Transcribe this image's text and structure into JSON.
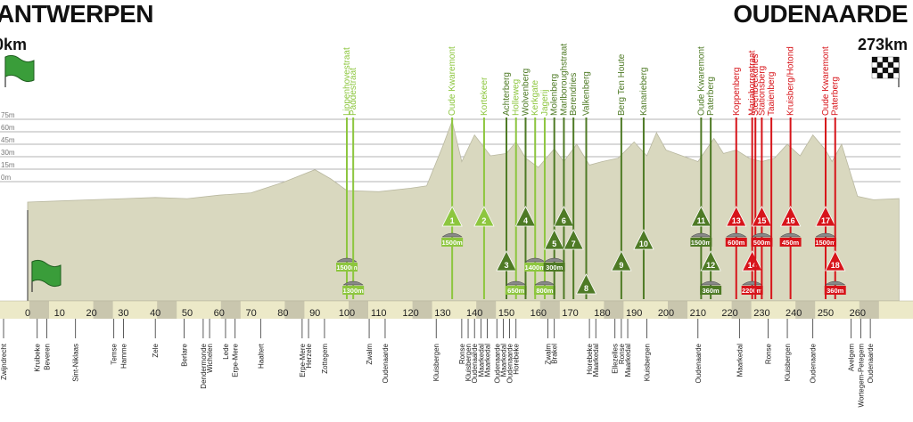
{
  "start": {
    "city": "ANTWERPEN",
    "km": "0km"
  },
  "finish": {
    "city": "OUDENAARDE",
    "km": "273km"
  },
  "colors": {
    "terrain": "#d9d8bf",
    "cobble_climb": "#8dc63f",
    "dark_climb": "#4e7a25",
    "final_climb": "#d7141a",
    "axis_band": "#ece9c8",
    "axis_cell": "#c9c6ae"
  },
  "chart_data": {
    "type": "area",
    "title": "",
    "xlabel": "",
    "ylabel": "",
    "xlim": [
      0,
      273
    ],
    "x_ticks": [
      0,
      10,
      20,
      30,
      40,
      50,
      60,
      70,
      80,
      90,
      100,
      110,
      120,
      130,
      140,
      150,
      160,
      170,
      180,
      190,
      200,
      210,
      220,
      230,
      240,
      250,
      260
    ],
    "y_gridlines": [
      "75m",
      "60m",
      "45m",
      "30m",
      "15m",
      "0m"
    ],
    "profile": {
      "x": [
        0,
        10,
        20,
        30,
        40,
        50,
        60,
        70,
        80,
        90,
        95,
        100,
        110,
        120,
        125,
        130,
        133,
        136,
        140,
        145,
        150,
        153,
        156,
        160,
        165,
        168,
        172,
        176,
        180,
        185,
        190,
        194,
        197,
        200,
        205,
        210,
        215,
        218,
        222,
        226,
        230,
        234,
        238,
        242,
        246,
        250,
        252,
        255,
        260,
        265,
        273
      ],
      "y": [
        10,
        11,
        12,
        13,
        14,
        13,
        16,
        18,
        27,
        38,
        30,
        20,
        19,
        22,
        24,
        58,
        80,
        45,
        68,
        50,
        52,
        62,
        48,
        40,
        56,
        45,
        60,
        42,
        45,
        48,
        62,
        50,
        70,
        55,
        50,
        45,
        65,
        52,
        55,
        48,
        45,
        48,
        60,
        50,
        68,
        55,
        45,
        60,
        15,
        12,
        13
      ]
    },
    "climbs": [
      {
        "name": "Lippenhovestraat",
        "km": 100,
        "kind": "sector",
        "surface": "1500m",
        "number": ""
      },
      {
        "name": "Paddestraat",
        "km": 102,
        "kind": "sector",
        "surface": "1300m",
        "number": ""
      },
      {
        "name": "Oude Kwaremont",
        "km": 133,
        "kind": "climb",
        "surface": "1500m",
        "number": "1"
      },
      {
        "name": "Kortekeer",
        "km": 143,
        "kind": "climb",
        "surface": "",
        "number": "2"
      },
      {
        "name": "Achterberg",
        "km": 150,
        "kind": "climb",
        "surface": "",
        "number": "3"
      },
      {
        "name": "Holleweg",
        "km": 153,
        "kind": "sector",
        "surface": "650m",
        "number": ""
      },
      {
        "name": "Wolvenberg",
        "km": 156,
        "kind": "climb",
        "surface": "",
        "number": "4"
      },
      {
        "name": "Kerkgate",
        "km": 159,
        "kind": "sector",
        "surface": "1400m",
        "number": ""
      },
      {
        "name": "Jagerij",
        "km": 162,
        "kind": "sector",
        "surface": "800m",
        "number": ""
      },
      {
        "name": "Molenberg",
        "km": 165,
        "kind": "climb",
        "surface": "300m",
        "number": "5"
      },
      {
        "name": "Marlboroughstraat",
        "km": 168,
        "kind": "climb",
        "surface": "",
        "number": "6"
      },
      {
        "name": "Berendries",
        "km": 171,
        "kind": "climb",
        "surface": "",
        "number": "7"
      },
      {
        "name": "Valkenberg",
        "km": 175,
        "kind": "climb",
        "surface": "",
        "number": "8"
      },
      {
        "name": "Berg Ten Houte",
        "km": 186,
        "kind": "climb",
        "surface": "",
        "number": "9"
      },
      {
        "name": "Kanarieberg",
        "km": 193,
        "kind": "climb",
        "surface": "",
        "number": "10"
      },
      {
        "name": "Oude Kwaremont",
        "km": 211,
        "kind": "climb",
        "surface": "1500m",
        "number": "11"
      },
      {
        "name": "Paterberg",
        "km": 214,
        "kind": "climb",
        "surface": "360m",
        "number": "12"
      },
      {
        "name": "Koppenberg",
        "km": 222,
        "kind": "climb",
        "surface": "600m",
        "number": "13"
      },
      {
        "name": "Mariaborrestraat",
        "km": 227,
        "kind": "climb",
        "surface": "2200m",
        "number": "14"
      },
      {
        "name": "Steenbeekdries",
        "km": 228,
        "kind": "climb",
        "surface": "",
        "number": ""
      },
      {
        "name": "Stationsberg",
        "km": 230,
        "kind": "climb",
        "surface": "500m",
        "number": "15"
      },
      {
        "name": "Taaienberg",
        "km": 233,
        "kind": "climb",
        "surface": "",
        "number": ""
      },
      {
        "name": "Kruisberg/Hotond",
        "km": 239,
        "kind": "climb",
        "surface": "450m",
        "number": "16"
      },
      {
        "name": "Oude Kwaremont",
        "km": 250,
        "kind": "climb",
        "surface": "1500m",
        "number": "17"
      },
      {
        "name": "Paterberg",
        "km": 253,
        "kind": "climb",
        "surface": "360m",
        "number": "18"
      }
    ],
    "towns": [
      {
        "name": "Zwijndrecht",
        "km": 0
      },
      {
        "name": "Kruibeke",
        "km": 3
      },
      {
        "name": "Beveren",
        "km": 6
      },
      {
        "name": "Sint-Niklaas",
        "km": 15
      },
      {
        "name": "Temse",
        "km": 27
      },
      {
        "name": "Hamme",
        "km": 30
      },
      {
        "name": "Zele",
        "km": 40
      },
      {
        "name": "Berlare",
        "km": 49
      },
      {
        "name": "Dendermonde",
        "km": 55
      },
      {
        "name": "Wichelen",
        "km": 57
      },
      {
        "name": "Lede",
        "km": 62
      },
      {
        "name": "Erpe-Mere",
        "km": 65
      },
      {
        "name": "Haaltert",
        "km": 73
      },
      {
        "name": "Erpe-Mere",
        "km": 86
      },
      {
        "name": "Herzele",
        "km": 88
      },
      {
        "name": "Zottegem",
        "km": 93
      },
      {
        "name": "Zwalm",
        "km": 107
      },
      {
        "name": "Oudenaarde",
        "km": 112
      },
      {
        "name": "Kluisbergen",
        "km": 128
      },
      {
        "name": "Ronse",
        "km": 136
      },
      {
        "name": "Kluisbergen",
        "km": 138
      },
      {
        "name": "Oudenaarde",
        "km": 140
      },
      {
        "name": "Maarkedal",
        "km": 142
      },
      {
        "name": "Maarkedal",
        "km": 144
      },
      {
        "name": "Oudenaarde",
        "km": 147
      },
      {
        "name": "Maarkedal",
        "km": 149
      },
      {
        "name": "Oudenaarde",
        "km": 151
      },
      {
        "name": "Horebeke",
        "km": 153
      },
      {
        "name": "Zwalm",
        "km": 163
      },
      {
        "name": "Brakel",
        "km": 165
      },
      {
        "name": "Horebeke",
        "km": 176
      },
      {
        "name": "Maarkedal",
        "km": 178
      },
      {
        "name": "Ellezelles",
        "km": 184
      },
      {
        "name": "Ronse",
        "km": 186
      },
      {
        "name": "Maarkedal",
        "km": 188
      },
      {
        "name": "Kluisbergen",
        "km": 194
      },
      {
        "name": "Oudenaarde",
        "km": 210
      },
      {
        "name": "Maarkedal",
        "km": 223
      },
      {
        "name": "Ronse",
        "km": 232
      },
      {
        "name": "Kluisbergen",
        "km": 238
      },
      {
        "name": "Oudenaarde",
        "km": 246
      },
      {
        "name": "Avelgem",
        "km": 258
      },
      {
        "name": "Wortegem-Petegem",
        "km": 261
      },
      {
        "name": "Oudenaarde",
        "km": 264
      }
    ]
  }
}
